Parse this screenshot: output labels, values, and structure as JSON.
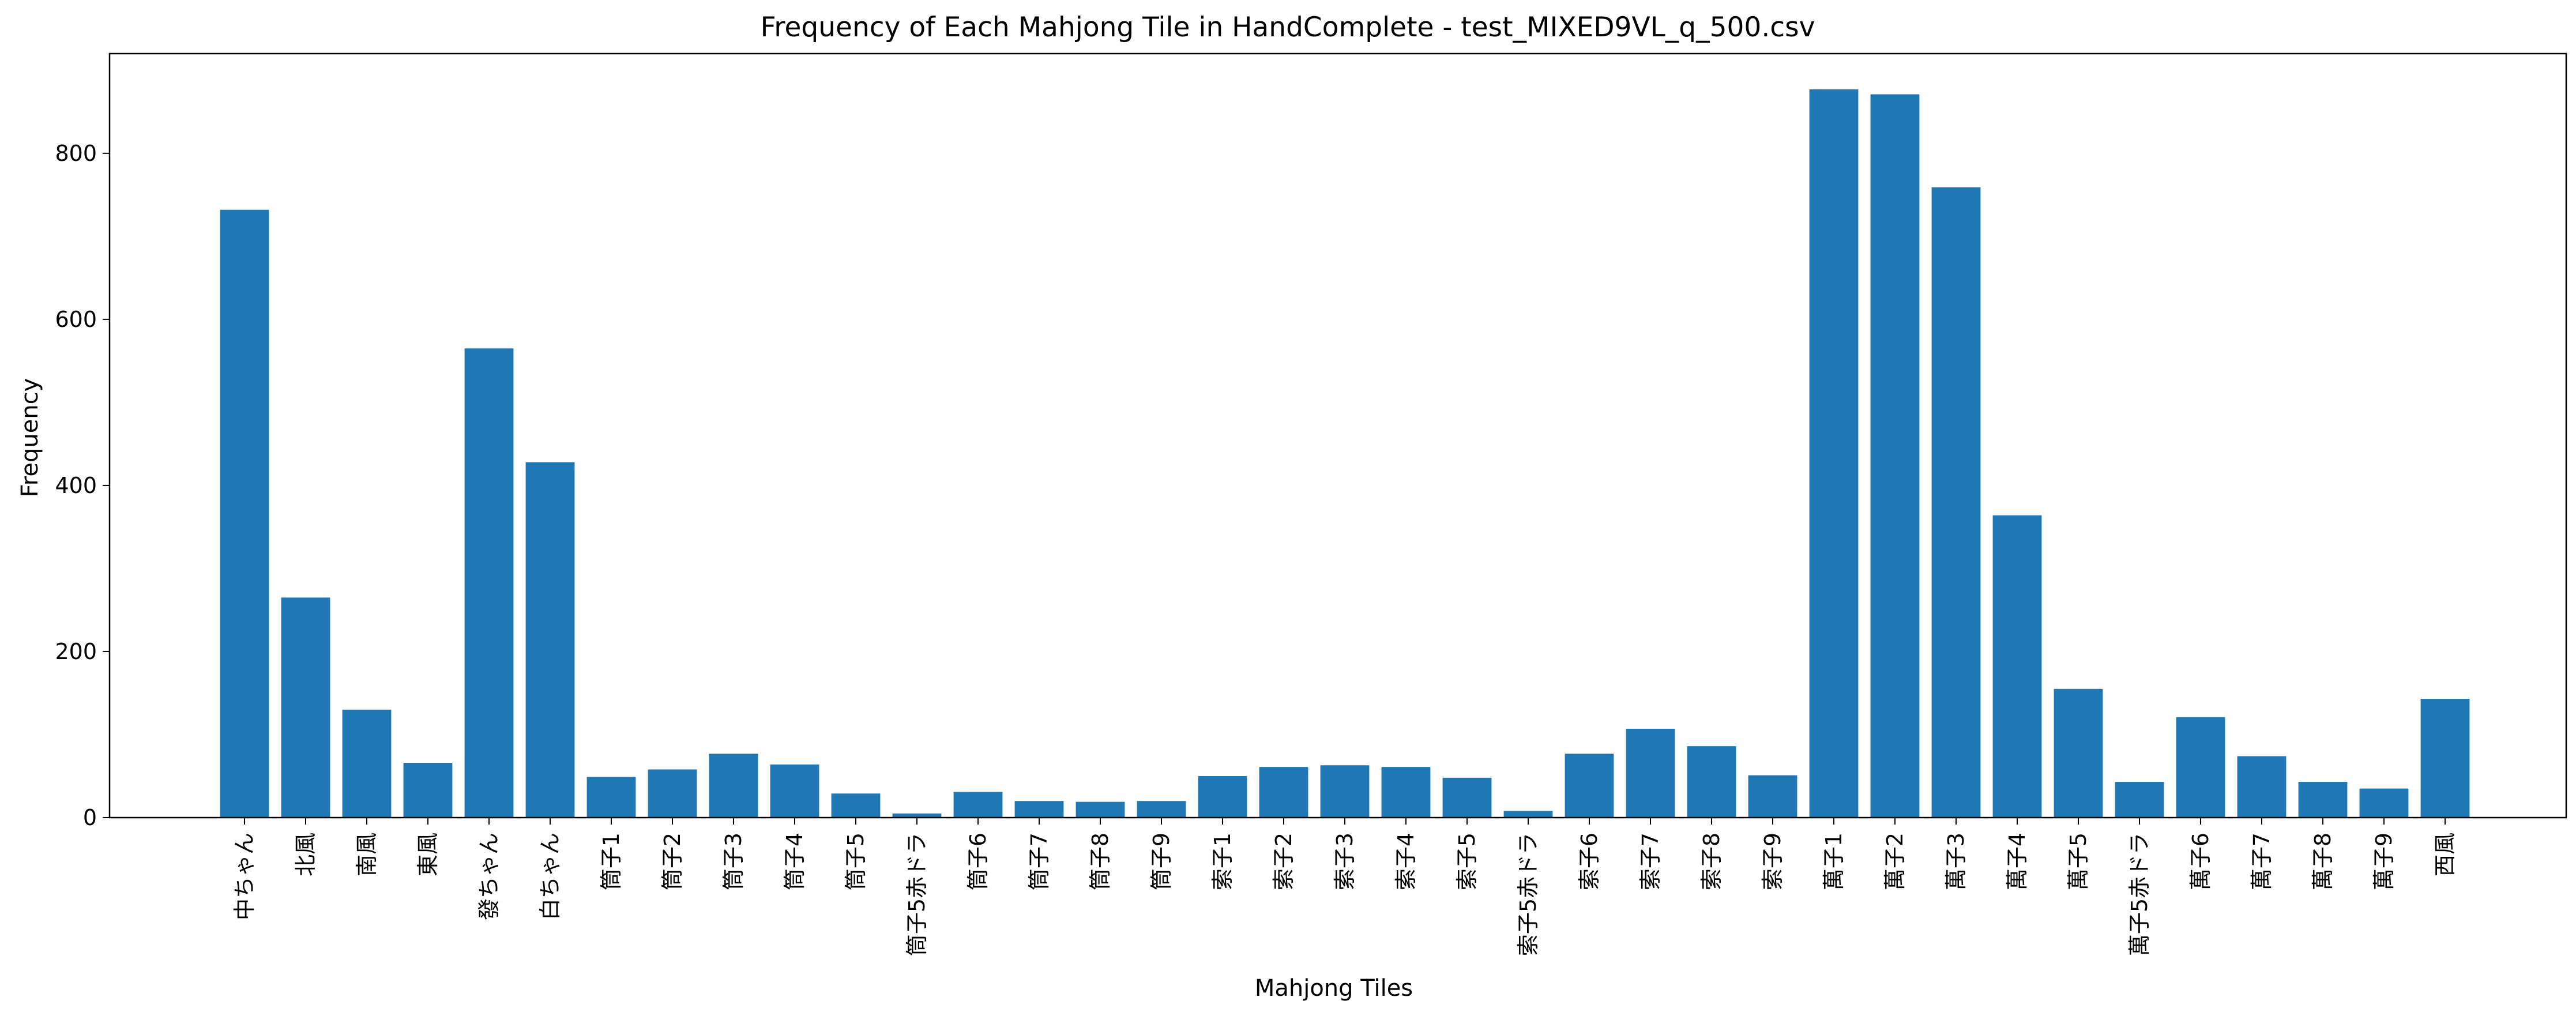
{
  "chart_data": {
    "type": "bar",
    "title": "Frequency of Each Mahjong Tile in HandComplete - test_MIXED9VL_q_500.csv",
    "xlabel": "Mahjong Tiles",
    "ylabel": "Frequency",
    "ylim": [
      0,
      920
    ],
    "yticks": [
      0,
      200,
      400,
      600,
      800
    ],
    "ytick_labels": [
      "0",
      "200",
      "400",
      "600",
      "800"
    ],
    "grid": false,
    "bar_color": "#1f77b4",
    "categories": [
      "中ちゃん",
      "北風",
      "南風",
      "東風",
      "發ちゃん",
      "白ちゃん",
      "筒子1",
      "筒子2",
      "筒子3",
      "筒子4",
      "筒子5",
      "筒子5赤ドラ",
      "筒子6",
      "筒子7",
      "筒子8",
      "筒子9",
      "索子1",
      "索子2",
      "索子3",
      "索子4",
      "索子5",
      "索子5赤ドラ",
      "索子6",
      "索子7",
      "索子8",
      "索子9",
      "萬子1",
      "萬子2",
      "萬子3",
      "萬子4",
      "萬子5",
      "萬子5赤ドラ",
      "萬子6",
      "萬子7",
      "萬子8",
      "萬子9",
      "西風"
    ],
    "values": [
      732,
      265,
      130,
      66,
      565,
      428,
      49,
      58,
      77,
      64,
      29,
      5,
      31,
      20,
      19,
      20,
      50,
      61,
      63,
      61,
      48,
      8,
      77,
      107,
      86,
      51,
      877,
      871,
      759,
      364,
      155,
      43,
      121,
      74,
      43,
      35,
      143
    ]
  }
}
